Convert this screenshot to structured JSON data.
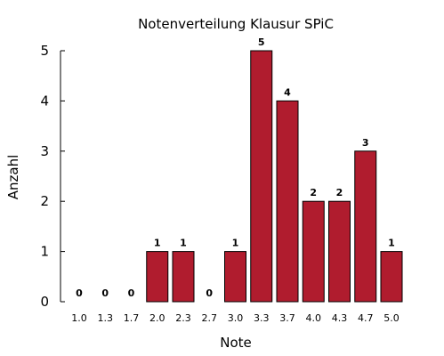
{
  "chart_data": {
    "type": "bar",
    "title": "Notenverteilung Klausur SPiC",
    "xlabel": "Note",
    "ylabel": "Anzahl",
    "categories": [
      "1.0",
      "1.3",
      "1.7",
      "2.0",
      "2.3",
      "2.7",
      "3.0",
      "3.3",
      "3.7",
      "4.0",
      "4.3",
      "4.7",
      "5.0"
    ],
    "values": [
      0,
      0,
      0,
      1,
      1,
      0,
      1,
      5,
      4,
      2,
      2,
      3,
      1
    ],
    "data_labels": [
      "0",
      "0",
      "0",
      "1",
      "1",
      "0",
      "1",
      "5",
      "4",
      "2",
      "2",
      "3",
      "1"
    ],
    "yticks": [
      0,
      1,
      2,
      3,
      4,
      5
    ],
    "ylim": [
      0,
      5
    ],
    "grid": false,
    "bar_color": "#b01c2e",
    "bar_edge_color": "#000000"
  }
}
